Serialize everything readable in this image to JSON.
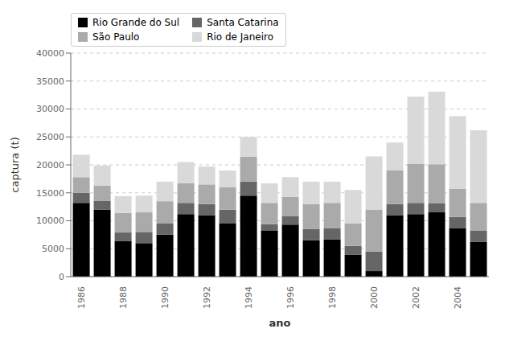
{
  "chart_data": {
    "type": "bar",
    "stacked": true,
    "xlabel": "ano",
    "ylabel": "captura (t)",
    "categories": [
      "1986",
      null,
      "1988",
      null,
      "1990",
      null,
      "1992",
      null,
      "1994",
      null,
      "1996",
      null,
      "1998",
      null,
      "2000",
      null,
      "2002",
      null,
      "2004",
      null
    ],
    "series": [
      {
        "name": "Rio Grande do Sul",
        "color": "#000000",
        "values": [
          13200,
          12000,
          6400,
          6000,
          7500,
          11200,
          11000,
          9500,
          14500,
          8200,
          9300,
          6500,
          6700,
          3900,
          1000,
          11000,
          11200,
          11500,
          8700,
          6200
        ]
      },
      {
        "name": "Santa Catarina",
        "color": "#666666",
        "values": [
          1800,
          1600,
          1500,
          2000,
          2000,
          2000,
          2000,
          2500,
          2500,
          1200,
          1500,
          2000,
          2000,
          1600,
          3500,
          2000,
          2000,
          1600,
          2000,
          2000
        ]
      },
      {
        "name": "São Paulo",
        "color": "#aaaaaa",
        "values": [
          2800,
          2700,
          3500,
          3500,
          4000,
          3500,
          3500,
          4000,
          4500,
          3800,
          3500,
          4500,
          4500,
          4000,
          7500,
          6000,
          7000,
          7000,
          5000,
          5000
        ]
      },
      {
        "name": "Rio de Janeiro",
        "color": "#d9d9d9",
        "values": [
          4000,
          3600,
          3000,
          3000,
          3500,
          3800,
          3200,
          3000,
          3500,
          3500,
          3500,
          4000,
          3800,
          6000,
          9500,
          5000,
          12000,
          13000,
          13000,
          13000
        ]
      }
    ],
    "ylim": [
      0,
      40000
    ],
    "yticks": [
      0,
      5000,
      10000,
      15000,
      20000,
      25000,
      30000,
      35000,
      40000
    ],
    "grid": true,
    "legend": "upper left"
  }
}
